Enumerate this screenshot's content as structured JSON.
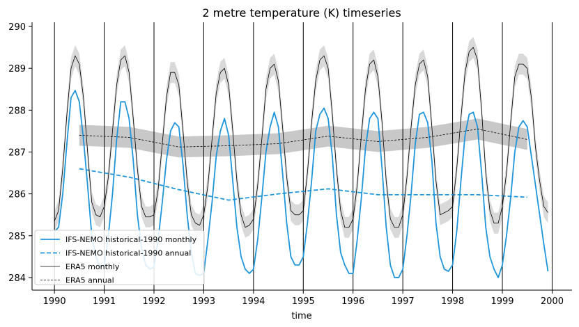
{
  "chart_data": {
    "type": "line",
    "title": "2 metre temperature (K) timeseries",
    "xlabel": "time",
    "ylabel": "",
    "xlim": [
      1989.55,
      2000.4
    ],
    "ylim": [
      283.7,
      290.1
    ],
    "x_ticks": [
      1990,
      1991,
      1992,
      1993,
      1994,
      1995,
      1996,
      1997,
      1998,
      1999,
      2000
    ],
    "x_tick_labels": [
      "1990",
      "1991",
      "1992",
      "1993",
      "1994",
      "1995",
      "1996",
      "1997",
      "1998",
      "1999",
      "2000"
    ],
    "y_ticks": [
      284,
      285,
      286,
      287,
      288,
      289,
      290
    ],
    "y_tick_labels": [
      "284",
      "285",
      "286",
      "287",
      "288",
      "289",
      "290"
    ],
    "vertical_lines_at": [
      1990,
      1991,
      1992,
      1993,
      1994,
      1995,
      1996,
      1997,
      1998,
      1999,
      2000
    ],
    "legend_position": "lower-left",
    "grid": false,
    "series": [
      {
        "name": "IFS-NEMO historical-1990 monthly",
        "style": "solid",
        "color": "#1f96dc",
        "monthly_start": 1990.0,
        "values": [
          285.1,
          285.2,
          286.0,
          287.2,
          288.3,
          288.47,
          288.2,
          287.3,
          286.2,
          285.0,
          284.5,
          284.25,
          284.3,
          285.0,
          286.0,
          287.3,
          288.2,
          288.2,
          287.8,
          286.8,
          285.5,
          284.7,
          284.3,
          284.2,
          284.25,
          284.9,
          285.8,
          286.8,
          287.5,
          287.7,
          287.6,
          286.7,
          285.5,
          284.6,
          284.1,
          284.05,
          284.1,
          284.9,
          285.8,
          286.9,
          287.5,
          287.8,
          287.4,
          286.3,
          285.2,
          284.5,
          284.2,
          284.1,
          284.2,
          284.9,
          285.9,
          287.0,
          287.6,
          287.95,
          287.6,
          286.5,
          285.3,
          284.5,
          284.3,
          284.3,
          284.5,
          285.3,
          286.3,
          287.5,
          287.9,
          288.05,
          287.8,
          286.9,
          285.5,
          284.6,
          284.3,
          284.1,
          284.1,
          284.9,
          285.9,
          287.1,
          287.8,
          287.95,
          287.8,
          286.6,
          285.2,
          284.3,
          284.0,
          284.0,
          284.2,
          285.0,
          286.0,
          287.2,
          287.9,
          287.95,
          287.7,
          286.8,
          285.3,
          284.5,
          284.2,
          284.15,
          284.3,
          285.1,
          286.3,
          287.4,
          287.9,
          287.95,
          287.6,
          286.5,
          285.2,
          284.5,
          284.2,
          284.0,
          284.3,
          285.0,
          285.9,
          287.0,
          287.6,
          287.75,
          287.6,
          286.9,
          286.2,
          285.5,
          284.8,
          284.15
        ]
      },
      {
        "name": "IFS-NEMO historical-1990 annual",
        "style": "dashed",
        "color": "#1f96dc",
        "x": [
          1990.5,
          1991.5,
          1992.5,
          1993.5,
          1994.5,
          1995.5,
          1996.5,
          1997.5,
          1998.5,
          1999.5
        ],
        "values": [
          286.6,
          286.4,
          286.1,
          285.85,
          286.0,
          286.12,
          285.98,
          285.98,
          285.98,
          285.92
        ]
      },
      {
        "name": "ERA5 monthly",
        "style": "solid-thin",
        "color": "#000000",
        "band_color": "#d9d9d9",
        "band_halfwidth": 0.25,
        "monthly_start": 1990.0,
        "values": [
          285.35,
          285.6,
          286.6,
          287.9,
          289.0,
          289.3,
          289.1,
          288.3,
          287.0,
          285.8,
          285.5,
          285.45,
          285.7,
          286.4,
          287.5,
          288.6,
          289.2,
          289.3,
          288.9,
          287.8,
          286.6,
          285.7,
          285.45,
          285.45,
          285.5,
          286.1,
          287.2,
          288.3,
          288.9,
          288.9,
          288.6,
          287.5,
          286.3,
          285.5,
          285.3,
          285.25,
          285.5,
          286.2,
          287.3,
          288.4,
          288.9,
          289.0,
          288.6,
          287.5,
          286.3,
          285.5,
          285.2,
          285.25,
          285.4,
          286.2,
          287.3,
          288.5,
          289.0,
          289.1,
          288.7,
          287.6,
          286.4,
          285.6,
          285.5,
          285.5,
          285.6,
          286.5,
          287.7,
          288.7,
          289.2,
          289.3,
          289.0,
          287.9,
          286.6,
          285.6,
          285.2,
          285.2,
          285.4,
          286.2,
          287.4,
          288.5,
          289.1,
          289.2,
          288.8,
          287.7,
          286.3,
          285.4,
          285.2,
          285.2,
          285.5,
          286.4,
          287.6,
          288.6,
          289.1,
          289.2,
          288.8,
          287.6,
          286.3,
          285.5,
          285.55,
          285.6,
          285.7,
          286.6,
          287.8,
          288.9,
          289.4,
          289.5,
          289.2,
          288.0,
          286.5,
          285.6,
          285.3,
          285.3,
          285.7,
          286.5,
          287.7,
          288.8,
          289.1,
          289.1,
          289.0,
          288.3,
          287.1,
          286.3,
          285.7,
          285.55
        ]
      },
      {
        "name": "ERA5 annual",
        "style": "dashed-thin",
        "color": "#000000",
        "band_color": "#c8c8c8",
        "band_halfwidth": 0.25,
        "x": [
          1990.5,
          1991.5,
          1992.5,
          1993.5,
          1994.5,
          1995.5,
          1996.5,
          1997.5,
          1998.5,
          1999.5
        ],
        "values": [
          287.4,
          287.35,
          287.12,
          287.15,
          287.2,
          287.38,
          287.25,
          287.35,
          287.55,
          287.3
        ]
      }
    ]
  }
}
